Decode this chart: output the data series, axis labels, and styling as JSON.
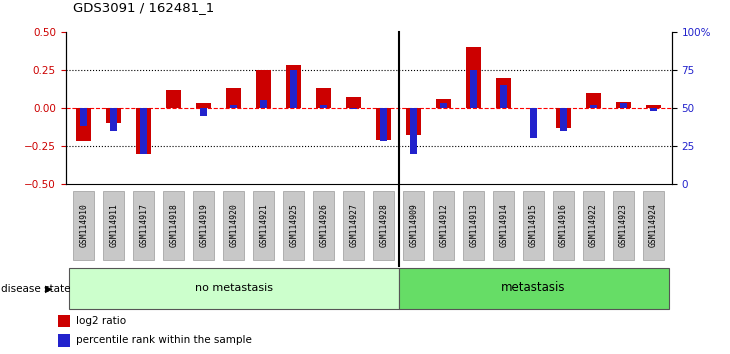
{
  "title": "GDS3091 / 162481_1",
  "samples": [
    "GSM114910",
    "GSM114911",
    "GSM114917",
    "GSM114918",
    "GSM114919",
    "GSM114920",
    "GSM114921",
    "GSM114925",
    "GSM114926",
    "GSM114927",
    "GSM114928",
    "GSM114909",
    "GSM114912",
    "GSM114913",
    "GSM114914",
    "GSM114915",
    "GSM114916",
    "GSM114922",
    "GSM114923",
    "GSM114924"
  ],
  "log2_ratio": [
    -0.22,
    -0.1,
    -0.3,
    0.12,
    0.03,
    0.13,
    0.25,
    0.28,
    0.13,
    0.07,
    -0.21,
    -0.18,
    0.06,
    0.4,
    0.2,
    0.0,
    -0.13,
    0.1,
    0.04,
    0.02
  ],
  "percentile_rank": [
    38,
    35,
    20,
    50,
    45,
    52,
    55,
    75,
    52,
    49,
    28,
    20,
    53,
    75,
    65,
    30,
    35,
    52,
    53,
    48
  ],
  "no_metastasis_count": 11,
  "ylim_left": [
    -0.5,
    0.5
  ],
  "ylim_right": [
    0,
    100
  ],
  "yticks_left": [
    -0.5,
    -0.25,
    0,
    0.25,
    0.5
  ],
  "yticks_right": [
    0,
    25,
    50,
    75,
    100
  ],
  "bar_color_red": "#CC0000",
  "bar_color_blue": "#2222CC",
  "hline_color_red": "#FF0000",
  "no_metastasis_color": "#CCFFCC",
  "metastasis_color": "#66DD66",
  "label_log2": "log2 ratio",
  "label_percentile": "percentile rank within the sample",
  "group_label": "disease state",
  "no_metastasis_label": "no metastasis",
  "metastasis_label": "metastasis"
}
